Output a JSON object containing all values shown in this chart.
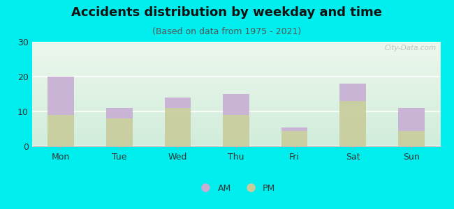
{
  "title": "Accidents distribution by weekday and time",
  "subtitle": "(Based on data from 1975 - 2021)",
  "categories": [
    "Mon",
    "Tue",
    "Wed",
    "Thu",
    "Fri",
    "Sat",
    "Sun"
  ],
  "pm_values": [
    9,
    8,
    11,
    9,
    4.5,
    13,
    4.5
  ],
  "am_values": [
    11,
    3,
    3,
    6,
    1,
    5,
    6.5
  ],
  "am_color": "#c8aed4",
  "pm_color": "#c8cc9a",
  "background_outer": "#00EEEE",
  "ylim": [
    0,
    30
  ],
  "yticks": [
    0,
    10,
    20,
    30
  ],
  "bar_width": 0.45,
  "watermark": "City-Data.com",
  "legend_labels": [
    "AM",
    "PM"
  ],
  "title_fontsize": 13,
  "subtitle_fontsize": 9,
  "tick_fontsize": 9
}
